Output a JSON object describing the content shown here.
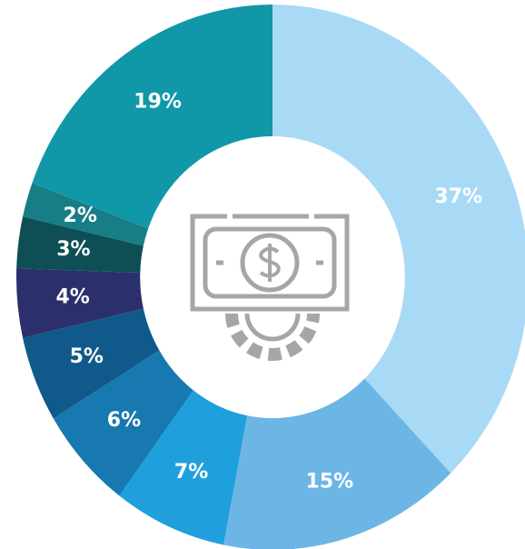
{
  "chart_data": {
    "type": "donut",
    "categories": [
      null,
      null,
      null,
      null,
      null,
      null,
      null,
      null,
      null
    ],
    "values": [
      37,
      15,
      7,
      6,
      5,
      4,
      3,
      2,
      19
    ],
    "value_labels": [
      "37%",
      "15%",
      "7%",
      "6%",
      "5%",
      "4%",
      "3%",
      "2%",
      "19%"
    ],
    "colors": [
      "#a8daf6",
      "#6cb6e6",
      "#1fa0dd",
      "#1779b0",
      "#0f5a8a",
      "#2b2f6b",
      "#0e4f55",
      "#177d86",
      "#1198a8"
    ]
  }
}
